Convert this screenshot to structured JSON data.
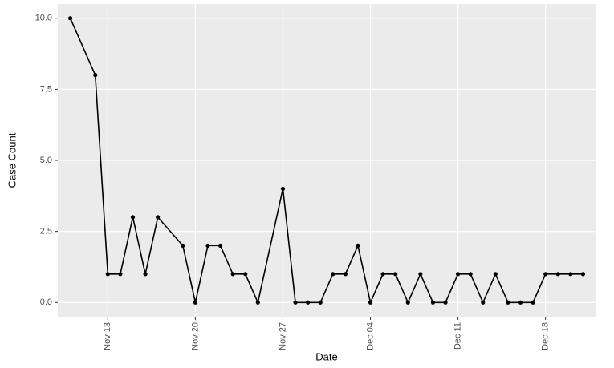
{
  "chart_data": {
    "type": "line",
    "x_label": "Date",
    "y_label": "Case Count",
    "x": [
      "Nov 10",
      "Nov 12",
      "Nov 13",
      "Nov 14",
      "Nov 15",
      "Nov 16",
      "Nov 17",
      "Nov 19",
      "Nov 20",
      "Nov 21",
      "Nov 22",
      "Nov 23",
      "Nov 24",
      "Nov 25",
      "Nov 27",
      "Nov 28",
      "Nov 29",
      "Nov 30",
      "Dec 01",
      "Dec 02",
      "Dec 03",
      "Dec 04",
      "Dec 05",
      "Dec 06",
      "Dec 07",
      "Dec 08",
      "Dec 09",
      "Dec 10",
      "Dec 11",
      "Dec 12",
      "Dec 13",
      "Dec 14",
      "Dec 15",
      "Dec 16",
      "Dec 17",
      "Dec 18",
      "Dec 19",
      "Dec 20",
      "Dec 21"
    ],
    "values": [
      10,
      8,
      1,
      1,
      3,
      1,
      3,
      2,
      0,
      2,
      2,
      1,
      1,
      0,
      4,
      0,
      0,
      0,
      1,
      1,
      2,
      0,
      1,
      1,
      0,
      1,
      0,
      0,
      1,
      1,
      0,
      1,
      0,
      0,
      0,
      1,
      1,
      1,
      1
    ],
    "color": "#000000",
    "xlim": [
      "Nov 09",
      "Dec 22"
    ],
    "xticks": [
      "Nov 13",
      "Nov 20",
      "Nov 27",
      "Dec 04",
      "Dec 11",
      "Dec 18"
    ],
    "ylim": [
      -0.5,
      10.5
    ],
    "yticks": [
      {
        "value": 0,
        "label": "0.0"
      },
      {
        "value": 2.5,
        "label": "2.5"
      },
      {
        "value": 5,
        "label": "5.0"
      },
      {
        "value": 7.5,
        "label": "7.5"
      },
      {
        "value": 10,
        "label": "10.0"
      }
    ],
    "grid": true
  }
}
